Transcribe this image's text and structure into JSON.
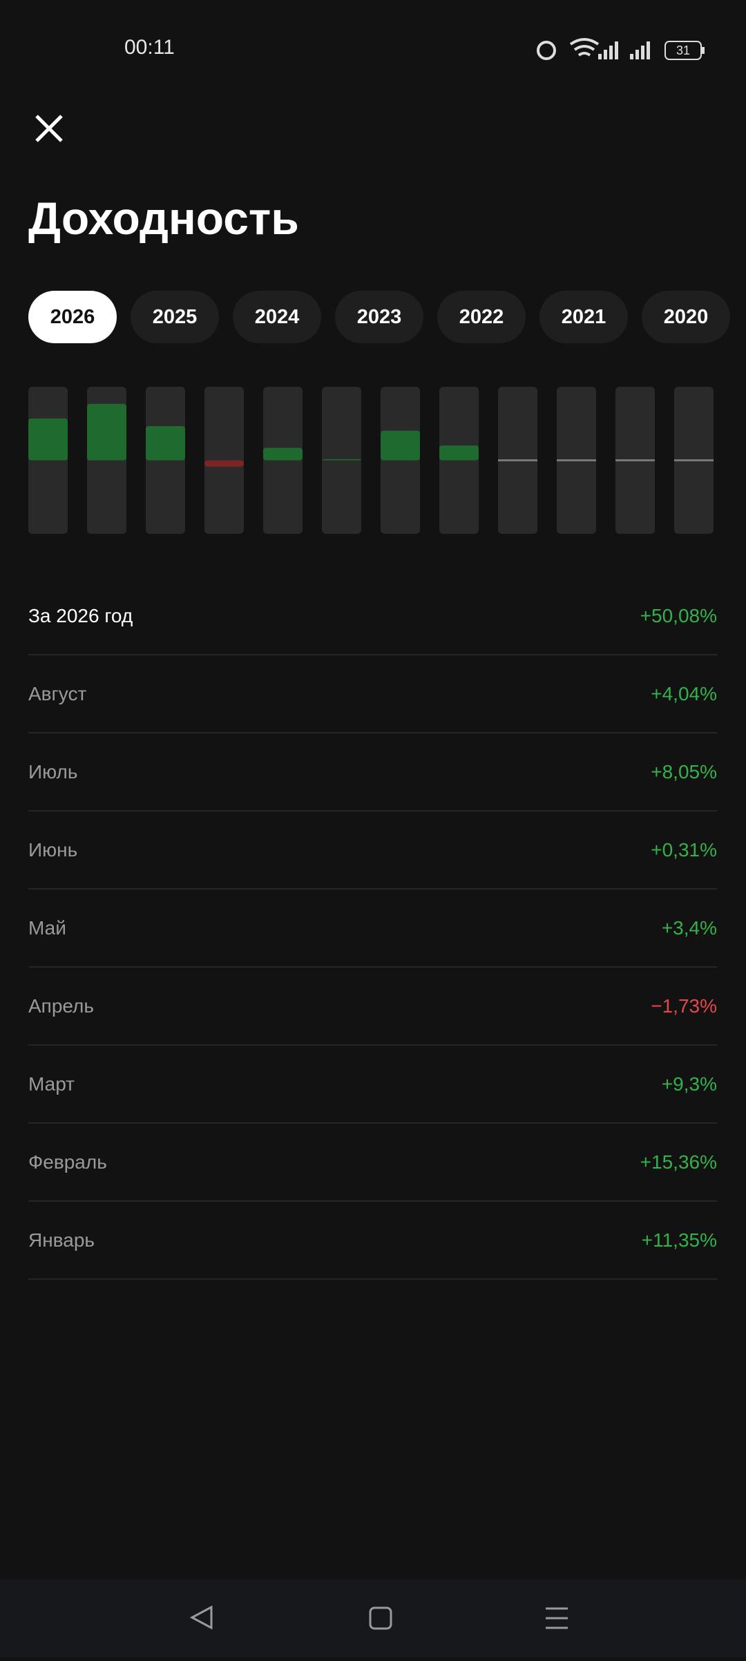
{
  "status_bar": {
    "time": "00:11",
    "battery": "31"
  },
  "title": "Доходность",
  "years": [
    {
      "label": "2026",
      "selected": true
    },
    {
      "label": "2025",
      "selected": false
    },
    {
      "label": "2024",
      "selected": false
    },
    {
      "label": "2023",
      "selected": false
    },
    {
      "label": "2022",
      "selected": false
    },
    {
      "label": "2021",
      "selected": false
    },
    {
      "label": "2020",
      "selected": false
    }
  ],
  "chart": {
    "ylim": [
      -20,
      20
    ]
  },
  "summary": {
    "label": "За 2026 год",
    "value_label": "+50,08%"
  },
  "months": [
    {
      "name": "Август",
      "value": 4.04,
      "label": "+4,04%"
    },
    {
      "name": "Июль",
      "value": 8.05,
      "label": "+8,05%"
    },
    {
      "name": "Июнь",
      "value": 0.31,
      "label": "+0,31%"
    },
    {
      "name": "Май",
      "value": 3.4,
      "label": "+3,4%"
    },
    {
      "name": "Апрель",
      "value": -1.73,
      "label": "−1,73%"
    },
    {
      "name": "Март",
      "value": 9.3,
      "label": "+9,3%"
    },
    {
      "name": "Февраль",
      "value": 15.36,
      "label": "+15,36%"
    },
    {
      "name": "Январь",
      "value": 11.35,
      "label": "+11,35%"
    }
  ]
}
